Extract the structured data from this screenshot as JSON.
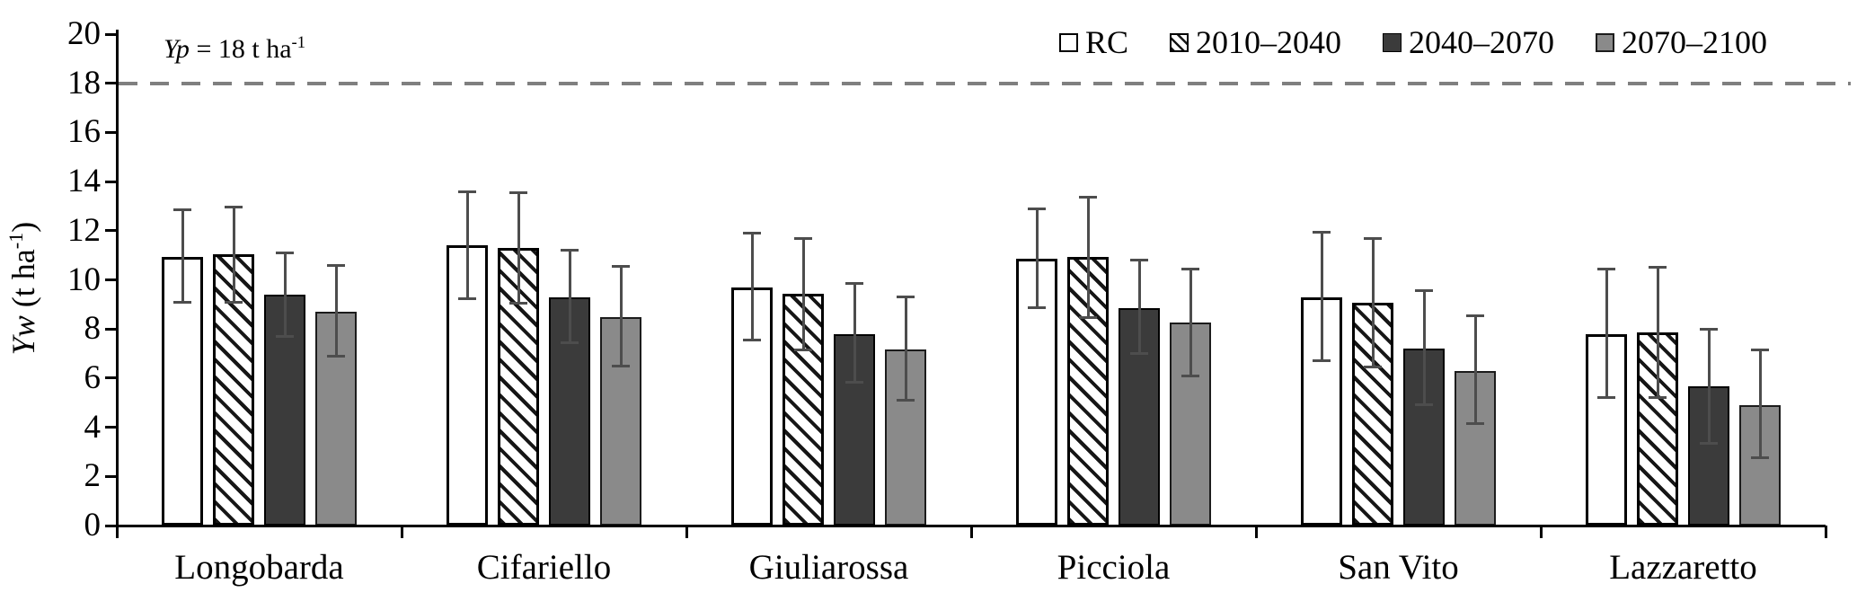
{
  "chart_data": {
    "type": "bar",
    "title": "",
    "categories": [
      "Longobarda",
      "Cifariello",
      "Giuliarossa",
      "Picciola",
      "San Vito",
      "Lazzaretto"
    ],
    "series": [
      {
        "name": "RC",
        "fill": "white",
        "values": [
          10.95,
          11.4,
          9.7,
          10.85,
          9.3,
          7.8
        ],
        "err_upper": [
          12.85,
          13.6,
          11.9,
          12.9,
          11.95,
          10.45
        ],
        "err_lower": [
          9.1,
          9.25,
          7.55,
          8.85,
          6.7,
          5.2
        ]
      },
      {
        "name": "2010–2040",
        "fill": "hatch",
        "values": [
          11.05,
          11.3,
          9.45,
          10.95,
          9.05,
          7.85
        ],
        "err_upper": [
          12.95,
          13.55,
          11.7,
          13.35,
          11.7,
          10.5
        ],
        "err_lower": [
          9.1,
          9.05,
          7.15,
          8.45,
          6.45,
          5.2
        ]
      },
      {
        "name": "2040–2070",
        "fill": "dark",
        "values": [
          9.4,
          9.3,
          7.8,
          8.85,
          7.2,
          5.65
        ],
        "err_upper": [
          11.1,
          11.2,
          9.85,
          10.8,
          9.55,
          8.0
        ],
        "err_lower": [
          7.7,
          7.45,
          5.85,
          7.0,
          4.9,
          3.35
        ]
      },
      {
        "name": "2070–2100",
        "fill": "gray",
        "values": [
          8.7,
          8.5,
          7.15,
          8.25,
          6.3,
          4.9
        ],
        "err_upper": [
          10.6,
          10.55,
          9.3,
          10.45,
          8.55,
          7.15
        ],
        "err_lower": [
          6.9,
          6.5,
          5.1,
          6.1,
          4.15,
          2.75
        ]
      }
    ],
    "ylabel_parts": {
      "italic": "Yw",
      "mid": " (t ha",
      "sup": "-1",
      "close": ")"
    },
    "xlabel": "",
    "ylim": [
      0,
      20
    ],
    "yticks": [
      0,
      2,
      4,
      6,
      8,
      10,
      12,
      14,
      16,
      18,
      20
    ],
    "reference_line": {
      "value": 18,
      "label_italic": "Yp",
      "label_mid": " = 18 t ha",
      "label_sup": "-1"
    },
    "legend_position": "top-right",
    "grid": false
  },
  "colors": {
    "bar_dark": "#3b3b3b",
    "bar_gray": "#8a8a8a",
    "hatch_stroke": "#161616",
    "bar_outline": "#000000",
    "error_bar": "#4d4d4d",
    "reference_line": "#7f7f7f",
    "axis": "#000000",
    "text": "#000000"
  }
}
